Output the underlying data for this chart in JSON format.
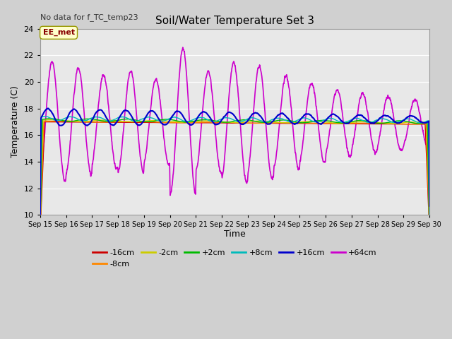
{
  "title": "Soil/Water Temperature Set 3",
  "xlabel": "Time",
  "ylabel": "Temperature (C)",
  "note": "No data for f_TC_temp23",
  "annotation": "EE_met",
  "ylim": [
    10,
    24
  ],
  "yticks": [
    10,
    12,
    14,
    16,
    18,
    20,
    22,
    24
  ],
  "bg_outer": "#d0d0d0",
  "bg_inner": "#e8e8e8",
  "series_colors": {
    "-16cm": "#cc0000",
    "-8cm": "#ff8800",
    "-2cm": "#cccc00",
    "+2cm": "#00bb00",
    "+8cm": "#00bbbb",
    "+16cm": "#0000cc",
    "+64cm": "#cc00cc"
  },
  "x_start": 15,
  "x_end": 30,
  "x_ticks": [
    15,
    16,
    17,
    18,
    19,
    20,
    21,
    22,
    23,
    24,
    25,
    26,
    27,
    28,
    29,
    30
  ],
  "figsize": [
    6.4,
    4.8
  ],
  "dpi": 100
}
